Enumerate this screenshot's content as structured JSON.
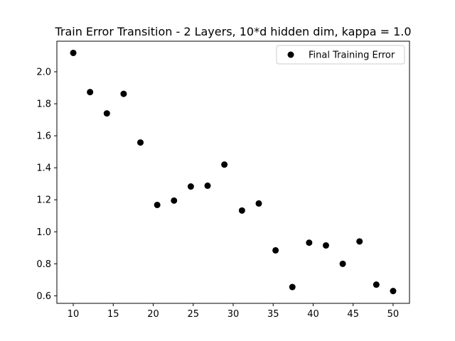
{
  "chart_data": {
    "type": "scatter",
    "title": "Train Error Transition - 2 Layers, 10*d hidden dim, kappa = 1.0",
    "xlabel": "",
    "ylabel": "",
    "xlim": [
      7.95,
      52.05
    ],
    "ylim": [
      0.553,
      2.191
    ],
    "grid": false,
    "legend_position": "top-right",
    "x_ticks": [
      10,
      15,
      20,
      25,
      30,
      35,
      40,
      45,
      50
    ],
    "y_ticks": [
      0.6,
      0.8,
      1.0,
      1.2,
      1.4,
      1.6,
      1.8,
      2.0
    ],
    "y_tick_labels": [
      "0.6",
      "0.8",
      "1.0",
      "1.2",
      "1.4",
      "1.6",
      "1.8",
      "2.0"
    ],
    "series": [
      {
        "name": "Final Training Error",
        "color": "#000000",
        "marker": "circle",
        "points": [
          {
            "x": 10.0,
            "y": 2.118
          },
          {
            "x": 12.1,
            "y": 1.873
          },
          {
            "x": 14.2,
            "y": 1.74
          },
          {
            "x": 16.3,
            "y": 1.862
          },
          {
            "x": 18.4,
            "y": 1.558
          },
          {
            "x": 20.5,
            "y": 1.168
          },
          {
            "x": 22.6,
            "y": 1.195
          },
          {
            "x": 24.7,
            "y": 1.283
          },
          {
            "x": 26.8,
            "y": 1.288
          },
          {
            "x": 28.9,
            "y": 1.42
          },
          {
            "x": 31.1,
            "y": 1.133
          },
          {
            "x": 33.2,
            "y": 1.177
          },
          {
            "x": 35.3,
            "y": 0.884
          },
          {
            "x": 37.4,
            "y": 0.655
          },
          {
            "x": 39.5,
            "y": 0.932
          },
          {
            "x": 41.6,
            "y": 0.915
          },
          {
            "x": 43.7,
            "y": 0.8
          },
          {
            "x": 45.8,
            "y": 0.94
          },
          {
            "x": 47.9,
            "y": 0.67
          },
          {
            "x": 50.0,
            "y": 0.63
          }
        ]
      }
    ]
  }
}
